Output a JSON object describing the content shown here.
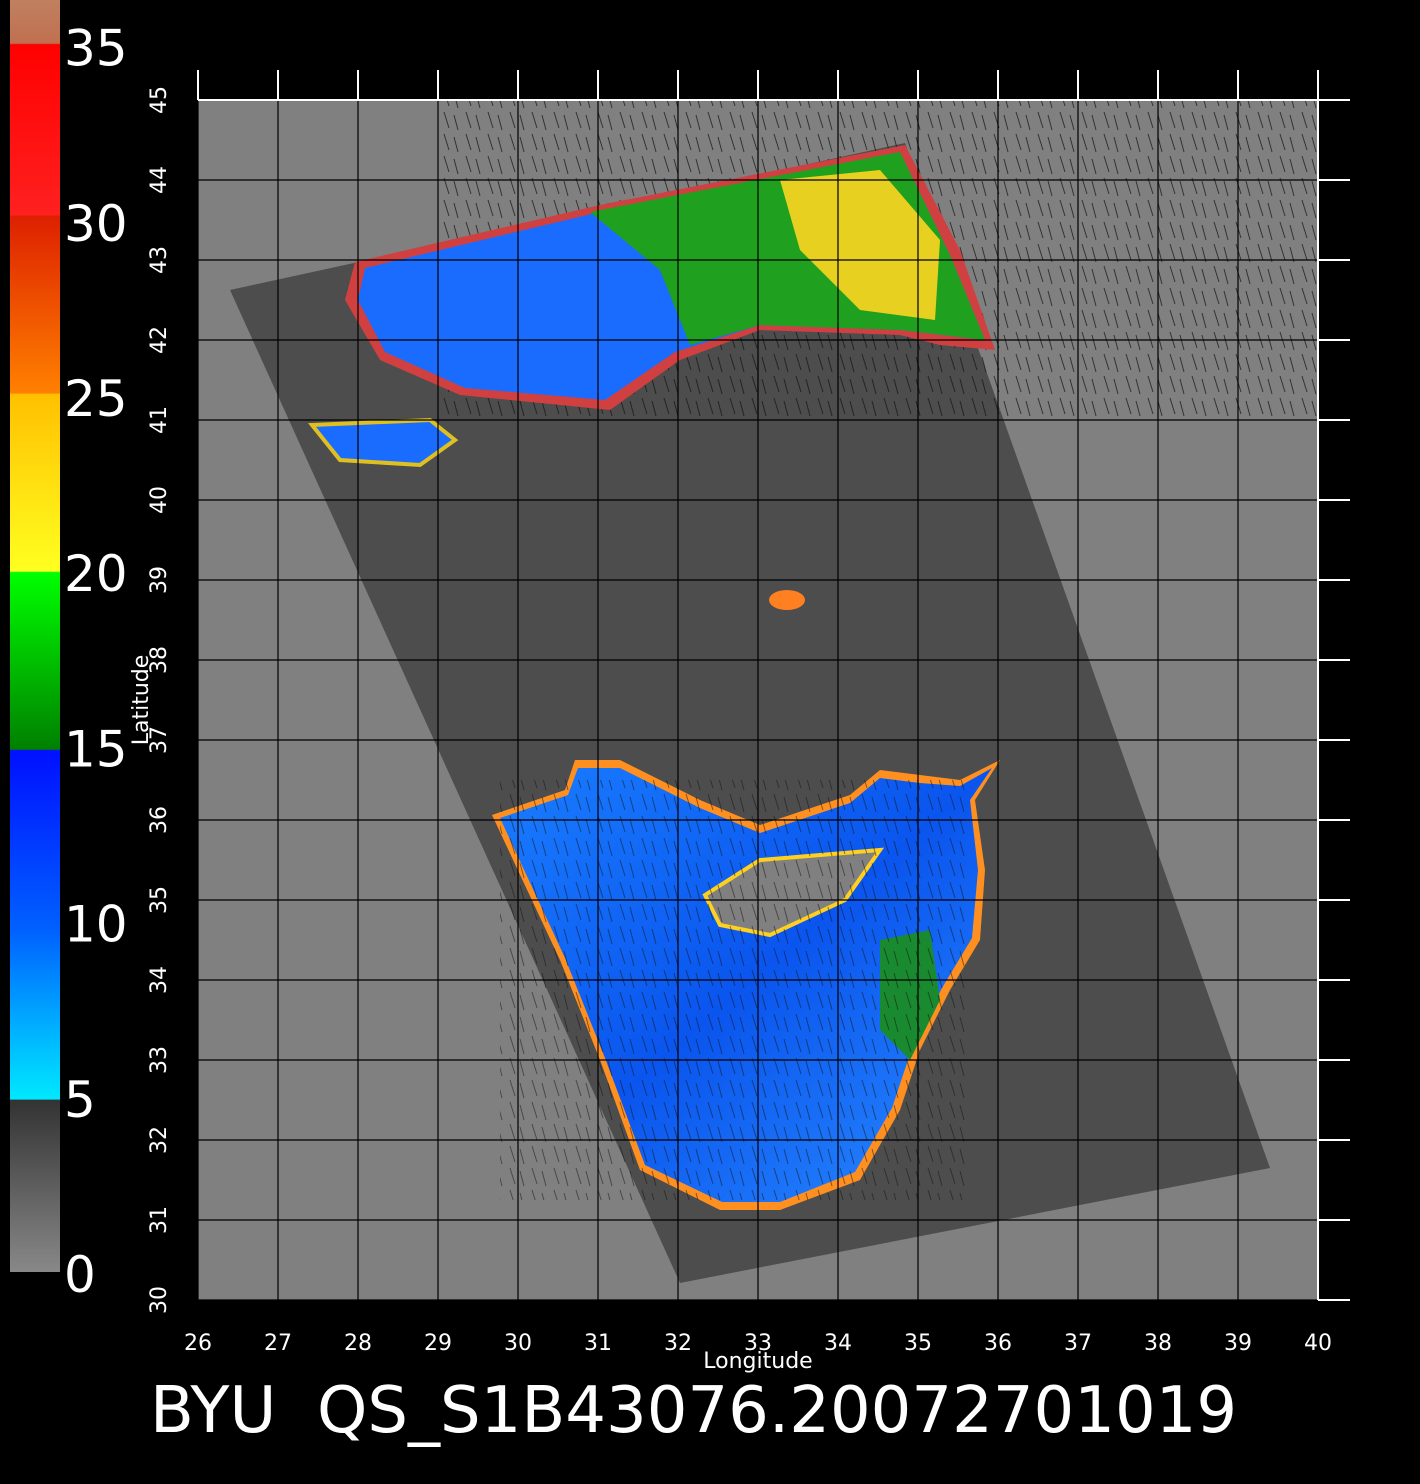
{
  "map": {
    "title": "BYU  QS_S1B43076.20072701019",
    "xlabel": "Longitude",
    "ylabel": "Latitude",
    "xlim": [
      26,
      40
    ],
    "ylim": [
      30,
      45
    ],
    "xticks": [
      26,
      27,
      28,
      29,
      30,
      31,
      32,
      33,
      34,
      35,
      36,
      37,
      38,
      39,
      40
    ],
    "yticks": [
      30,
      31,
      32,
      33,
      34,
      35,
      36,
      37,
      38,
      39,
      40,
      41,
      42,
      43,
      44,
      45
    ],
    "grid": true
  },
  "colorbar": {
    "lim": [
      0,
      36.3
    ],
    "ticks": [
      0,
      5,
      10,
      15,
      20,
      25,
      30,
      35
    ]
  }
}
